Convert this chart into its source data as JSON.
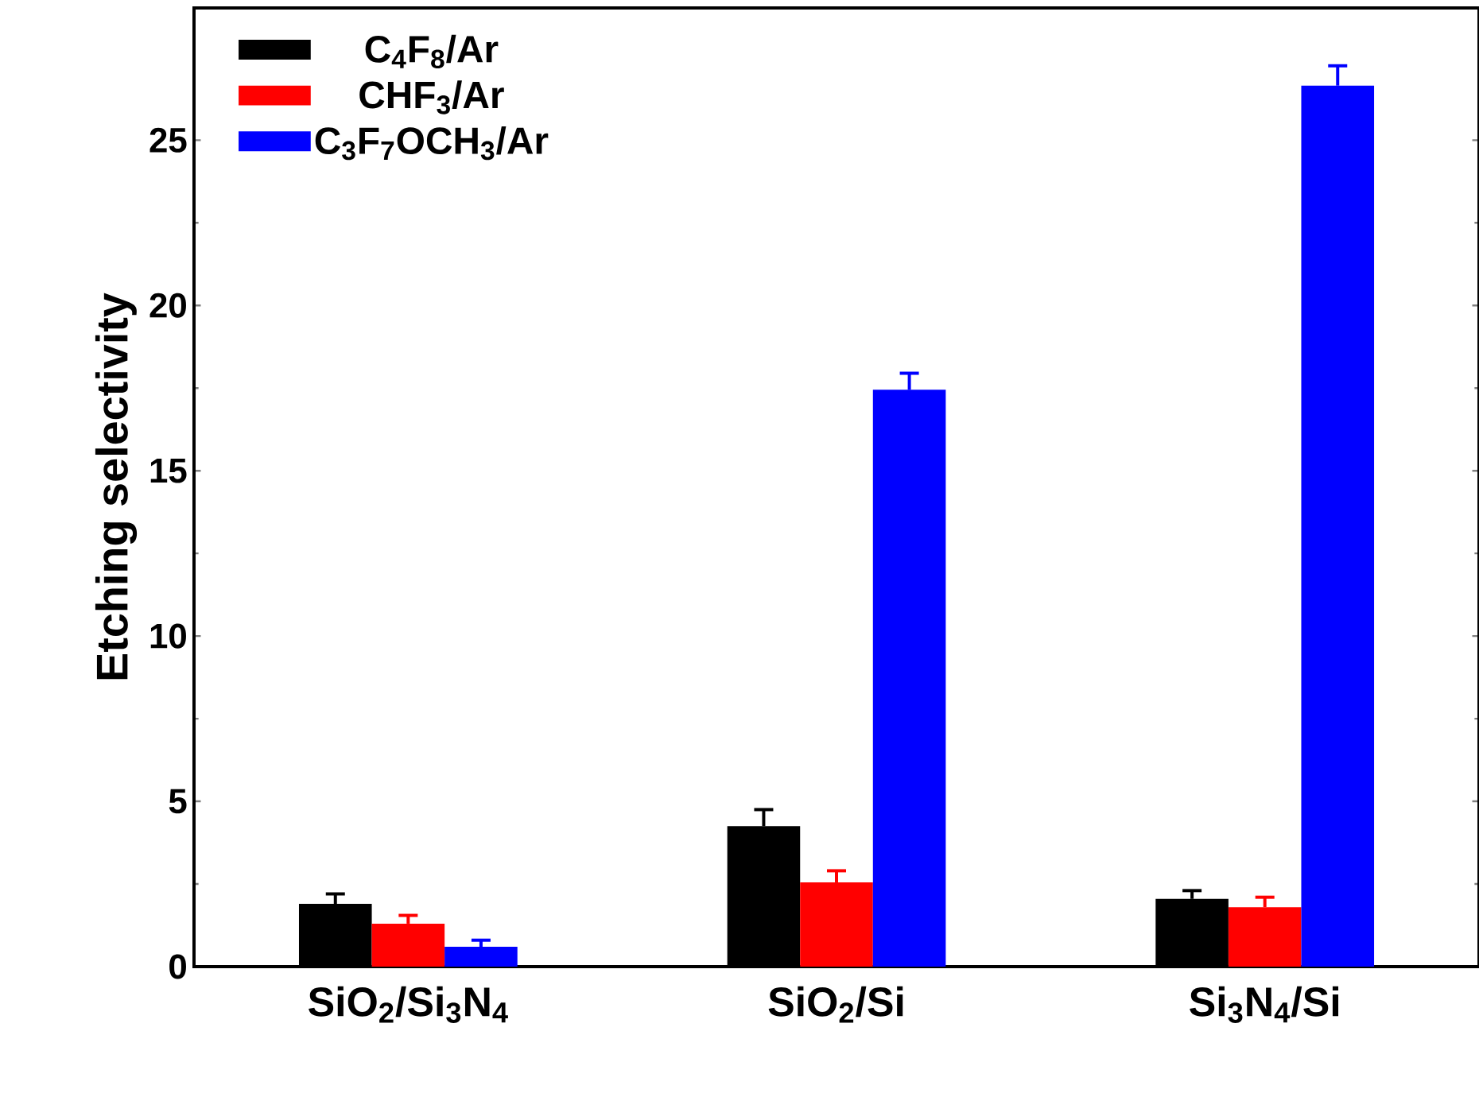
{
  "chart_data": {
    "type": "bar",
    "ylabel": "Etching selectivity",
    "categories": [
      "SiO$_{2}$/Si$_{3}$N$_{4}$",
      "SiO$_{2}$/Si",
      "Si$_{3}$N$_{4}$/Si"
    ],
    "series": [
      {
        "name": "C$_{4}$F$_{8}$/Ar",
        "color": "#000000",
        "values": [
          1.9,
          4.25,
          2.05
        ],
        "errors": [
          0.3,
          0.5,
          0.25
        ]
      },
      {
        "name": "CHF$_{3}$/Ar",
        "color": "#ff0000",
        "values": [
          1.3,
          2.55,
          1.8
        ],
        "errors": [
          0.25,
          0.35,
          0.3
        ]
      },
      {
        "name": "C$_{3}$F$_{7}$OCH$_{3}$/Ar",
        "color": "#0000ff",
        "values": [
          0.6,
          17.45,
          26.65
        ],
        "errors": [
          0.2,
          0.5,
          0.6
        ]
      }
    ],
    "ylim": [
      0,
      29
    ],
    "yticks": [
      0,
      5,
      10,
      15,
      20,
      25
    ],
    "grid": false,
    "legend": "top left"
  }
}
